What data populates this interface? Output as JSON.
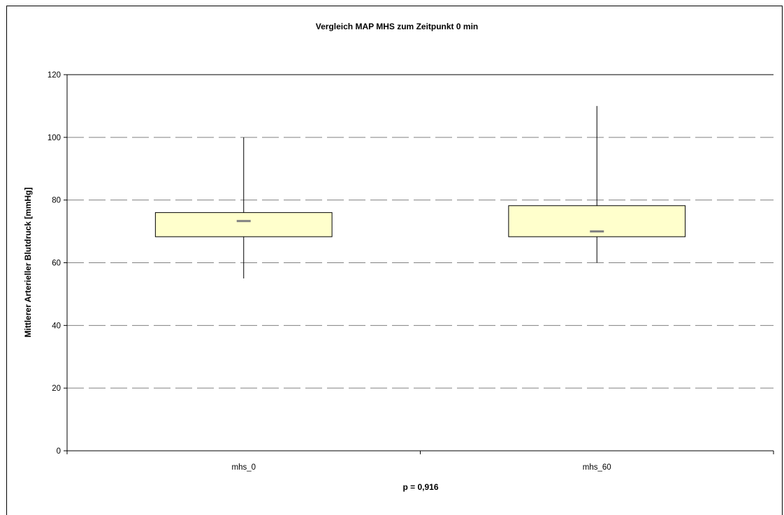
{
  "chart_data": {
    "type": "box",
    "title": "Vergleich MAP MHS zum Zeitpunkt 0 min",
    "xlabel": "",
    "ylabel": "Mittlerer Arterieller Blutdruck [mmHg]",
    "ylim": [
      0,
      120
    ],
    "yticks": [
      0,
      20,
      40,
      60,
      80,
      100,
      120
    ],
    "ytick_labels": [
      "0",
      "20",
      "40",
      "60",
      "80",
      "100",
      "120"
    ],
    "grid": "horizontal dashed",
    "categories": [
      "mhs_0",
      "mhs_60"
    ],
    "boxes": [
      {
        "category": "mhs_0",
        "min": 55,
        "q1": 68.3,
        "median": 73.3,
        "q3": 76,
        "max": 100
      },
      {
        "category": "mhs_60",
        "min": 60,
        "q1": 68.3,
        "median": 70,
        "q3": 78.2,
        "max": 110
      }
    ],
    "annotation": "p = 0,916",
    "colors": {
      "box_fill": "#FFFFCC",
      "median": "#808080",
      "grid": "#808080",
      "axis": "#000000"
    }
  }
}
